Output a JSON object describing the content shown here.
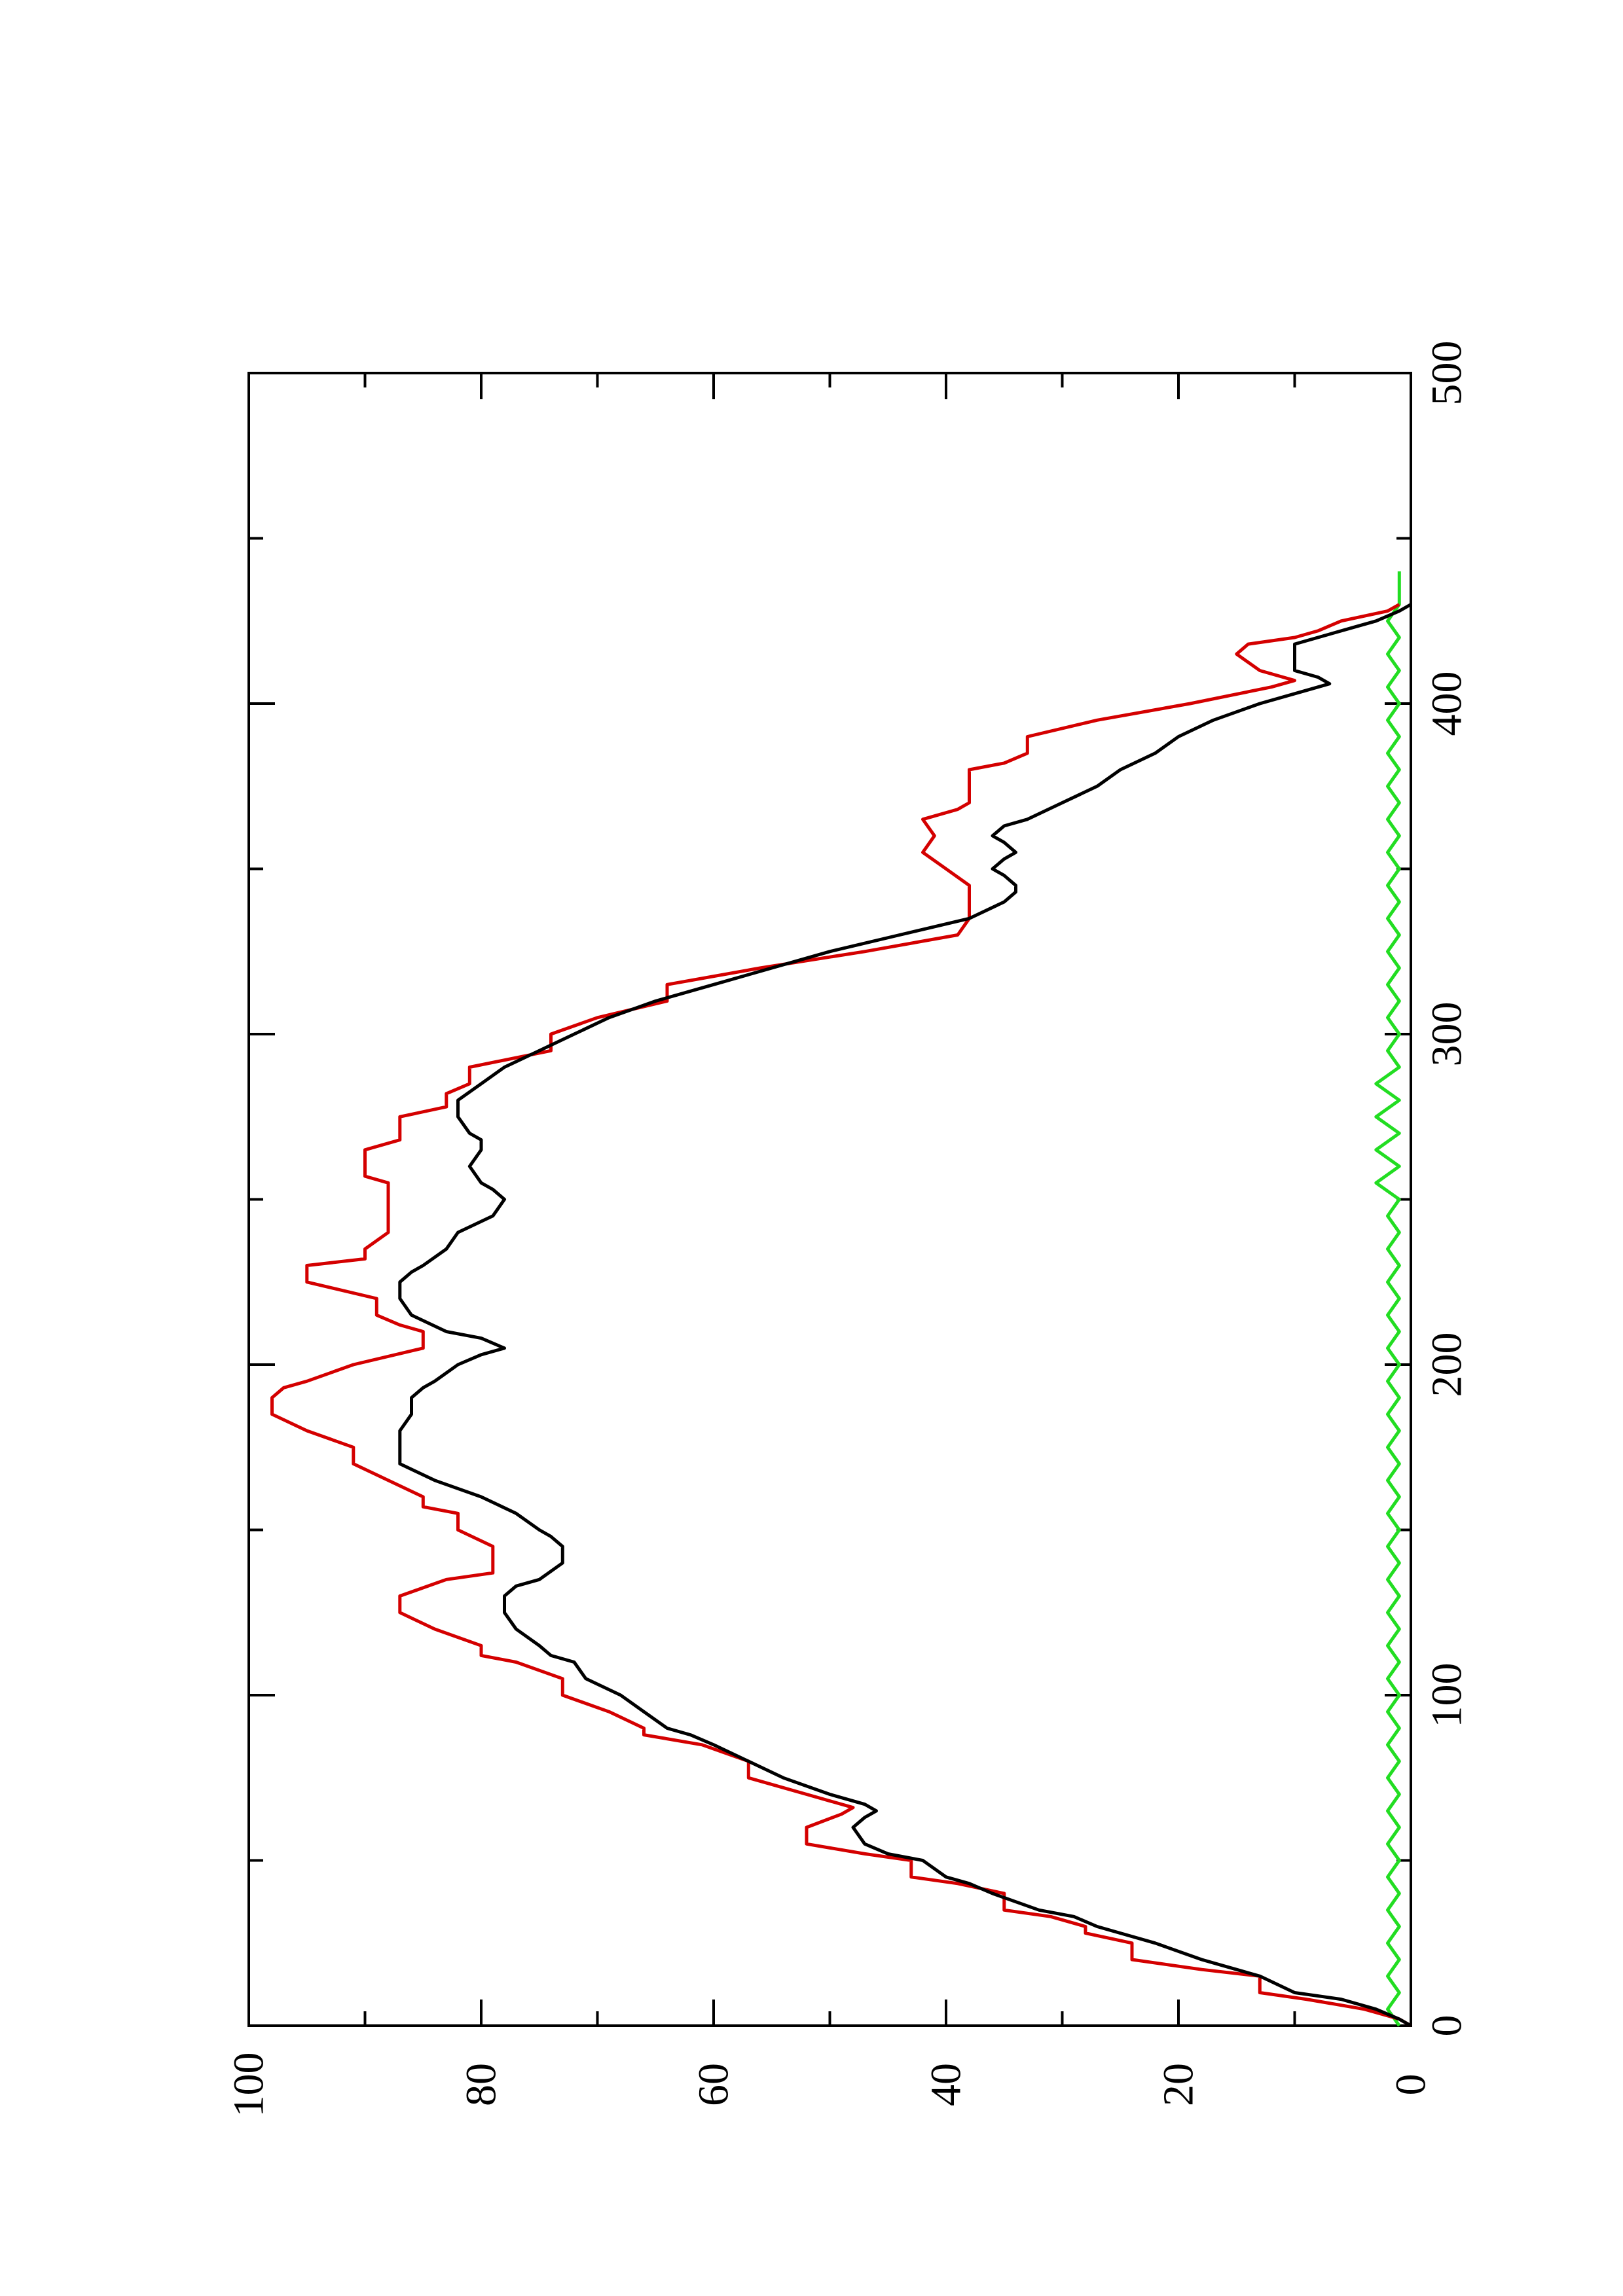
{
  "chart_data": {
    "type": "line",
    "orientation": "rotated 90 degrees counter-clockwise (page in landscape)",
    "title": "",
    "xlabel": "",
    "ylabel": "",
    "xlim": [
      0,
      500
    ],
    "ylim": [
      0,
      100
    ],
    "x_ticks": [
      "0",
      "100",
      "200",
      "300",
      "400",
      "500"
    ],
    "y_ticks": [
      "0",
      "20",
      "40",
      "60",
      "80",
      "100"
    ],
    "grid": false,
    "legend": "none",
    "series": [
      {
        "color": "#d40000",
        "style": "step-like line",
        "points": [
          [
            0,
            0
          ],
          [
            2,
            1
          ],
          [
            5,
            4
          ],
          [
            8,
            9
          ],
          [
            10,
            13
          ],
          [
            15,
            13
          ],
          [
            17,
            18
          ],
          [
            20,
            24
          ],
          [
            25,
            24
          ],
          [
            28,
            28
          ],
          [
            30,
            28
          ],
          [
            33,
            31
          ],
          [
            35,
            35
          ],
          [
            40,
            35
          ],
          [
            43,
            39
          ],
          [
            45,
            43
          ],
          [
            50,
            43
          ],
          [
            52,
            47
          ],
          [
            55,
            52
          ],
          [
            60,
            52
          ],
          [
            64,
            49
          ],
          [
            66,
            48
          ],
          [
            70,
            52
          ],
          [
            75,
            57
          ],
          [
            80,
            57
          ],
          [
            85,
            61
          ],
          [
            88,
            66
          ],
          [
            90,
            66
          ],
          [
            95,
            69
          ],
          [
            100,
            73
          ],
          [
            105,
            73
          ],
          [
            110,
            77
          ],
          [
            112,
            80
          ],
          [
            115,
            80
          ],
          [
            120,
            84
          ],
          [
            125,
            87
          ],
          [
            130,
            87
          ],
          [
            135,
            83
          ],
          [
            137,
            79
          ],
          [
            140,
            79
          ],
          [
            143,
            79
          ],
          [
            145,
            79
          ],
          [
            150,
            82
          ],
          [
            155,
            82
          ],
          [
            157,
            85
          ],
          [
            160,
            85
          ],
          [
            165,
            88
          ],
          [
            170,
            91
          ],
          [
            175,
            91
          ],
          [
            180,
            95
          ],
          [
            185,
            98
          ],
          [
            190,
            98
          ],
          [
            193,
            97
          ],
          [
            195,
            95
          ],
          [
            200,
            91
          ],
          [
            205,
            85
          ],
          [
            210,
            85
          ],
          [
            212,
            87
          ],
          [
            215,
            89
          ],
          [
            220,
            89
          ],
          [
            225,
            95
          ],
          [
            230,
            95
          ],
          [
            232,
            90
          ],
          [
            235,
            90
          ],
          [
            240,
            88
          ],
          [
            245,
            88
          ],
          [
            250,
            88
          ],
          [
            255,
            88
          ],
          [
            257,
            90
          ],
          [
            260,
            90
          ],
          [
            265,
            90
          ],
          [
            268,
            87
          ],
          [
            270,
            87
          ],
          [
            275,
            87
          ],
          [
            278,
            83
          ],
          [
            280,
            83
          ],
          [
            282,
            83
          ],
          [
            285,
            81
          ],
          [
            290,
            81
          ],
          [
            295,
            74
          ],
          [
            300,
            74
          ],
          [
            305,
            70
          ],
          [
            310,
            64
          ],
          [
            315,
            64
          ],
          [
            320,
            56
          ],
          [
            325,
            47
          ],
          [
            330,
            39
          ],
          [
            335,
            38
          ],
          [
            340,
            38
          ],
          [
            345,
            38
          ],
          [
            350,
            40
          ],
          [
            355,
            42
          ],
          [
            360,
            41
          ],
          [
            365,
            42
          ],
          [
            368,
            39
          ],
          [
            370,
            38
          ],
          [
            375,
            38
          ],
          [
            380,
            38
          ],
          [
            382,
            35
          ],
          [
            385,
            33
          ],
          [
            390,
            33
          ],
          [
            395,
            27
          ],
          [
            400,
            19
          ],
          [
            405,
            12
          ],
          [
            407,
            10
          ],
          [
            408,
            11
          ],
          [
            410,
            13
          ],
          [
            415,
            15
          ],
          [
            418,
            14
          ],
          [
            420,
            10
          ],
          [
            422,
            8
          ],
          [
            425,
            6
          ],
          [
            428,
            2
          ],
          [
            430,
            1
          ]
        ]
      },
      {
        "color": "#000000",
        "style": "step-like line",
        "points": [
          [
            0,
            0
          ],
          [
            2,
            1
          ],
          [
            5,
            3
          ],
          [
            8,
            6
          ],
          [
            10,
            10
          ],
          [
            15,
            13
          ],
          [
            17,
            15
          ],
          [
            20,
            18
          ],
          [
            25,
            22
          ],
          [
            28,
            25
          ],
          [
            30,
            27
          ],
          [
            33,
            29
          ],
          [
            35,
            32
          ],
          [
            40,
            36
          ],
          [
            43,
            38
          ],
          [
            45,
            40
          ],
          [
            50,
            42
          ],
          [
            52,
            45
          ],
          [
            55,
            47
          ],
          [
            60,
            48
          ],
          [
            63,
            47
          ],
          [
            65,
            46
          ],
          [
            67,
            47
          ],
          [
            70,
            50
          ],
          [
            75,
            54
          ],
          [
            80,
            57
          ],
          [
            85,
            60
          ],
          [
            88,
            62
          ],
          [
            90,
            64
          ],
          [
            95,
            66
          ],
          [
            100,
            68
          ],
          [
            105,
            71
          ],
          [
            110,
            72
          ],
          [
            112,
            74
          ],
          [
            115,
            75
          ],
          [
            120,
            77
          ],
          [
            125,
            78
          ],
          [
            130,
            78
          ],
          [
            133,
            77
          ],
          [
            135,
            75
          ],
          [
            140,
            73
          ],
          [
            145,
            73
          ],
          [
            148,
            74
          ],
          [
            150,
            75
          ],
          [
            155,
            77
          ],
          [
            160,
            80
          ],
          [
            165,
            84
          ],
          [
            170,
            87
          ],
          [
            175,
            87
          ],
          [
            180,
            87
          ],
          [
            185,
            86
          ],
          [
            190,
            86
          ],
          [
            193,
            85
          ],
          [
            195,
            84
          ],
          [
            200,
            82
          ],
          [
            203,
            80
          ],
          [
            205,
            78
          ],
          [
            208,
            80
          ],
          [
            210,
            83
          ],
          [
            215,
            86
          ],
          [
            220,
            87
          ],
          [
            225,
            87
          ],
          [
            228,
            86
          ],
          [
            230,
            85
          ],
          [
            235,
            83
          ],
          [
            240,
            82
          ],
          [
            245,
            79
          ],
          [
            250,
            78
          ],
          [
            253,
            79
          ],
          [
            255,
            80
          ],
          [
            260,
            81
          ],
          [
            265,
            80
          ],
          [
            268,
            80
          ],
          [
            270,
            81
          ],
          [
            275,
            82
          ],
          [
            280,
            82
          ],
          [
            285,
            80
          ],
          [
            290,
            78
          ],
          [
            295,
            75
          ],
          [
            300,
            72
          ],
          [
            305,
            69
          ],
          [
            310,
            65
          ],
          [
            315,
            60
          ],
          [
            320,
            55
          ],
          [
            325,
            50
          ],
          [
            330,
            44
          ],
          [
            335,
            38
          ],
          [
            340,
            35
          ],
          [
            343,
            34
          ],
          [
            345,
            34
          ],
          [
            348,
            35
          ],
          [
            350,
            36
          ],
          [
            353,
            35
          ],
          [
            355,
            34
          ],
          [
            358,
            35
          ],
          [
            360,
            36
          ],
          [
            363,
            35
          ],
          [
            365,
            33
          ],
          [
            370,
            30
          ],
          [
            375,
            27
          ],
          [
            380,
            25
          ],
          [
            385,
            22
          ],
          [
            390,
            20
          ],
          [
            395,
            17
          ],
          [
            400,
            13
          ],
          [
            404,
            9
          ],
          [
            406,
            7
          ],
          [
            408,
            8
          ],
          [
            410,
            10
          ],
          [
            415,
            10
          ],
          [
            418,
            10
          ],
          [
            420,
            8
          ],
          [
            423,
            5
          ],
          [
            425,
            3
          ],
          [
            428,
            1
          ],
          [
            430,
            0
          ]
        ]
      },
      {
        "color": "#22dd22",
        "style": "noisy line near zero",
        "points": [
          [
            0,
            1
          ],
          [
            5,
            2
          ],
          [
            10,
            1
          ],
          [
            15,
            2
          ],
          [
            20,
            1
          ],
          [
            25,
            2
          ],
          [
            30,
            1
          ],
          [
            35,
            2
          ],
          [
            40,
            1
          ],
          [
            45,
            2
          ],
          [
            50,
            1
          ],
          [
            55,
            2
          ],
          [
            60,
            1
          ],
          [
            65,
            2
          ],
          [
            70,
            1
          ],
          [
            75,
            2
          ],
          [
            80,
            1
          ],
          [
            85,
            2
          ],
          [
            90,
            1
          ],
          [
            95,
            2
          ],
          [
            100,
            1
          ],
          [
            105,
            2
          ],
          [
            110,
            1
          ],
          [
            115,
            2
          ],
          [
            120,
            1
          ],
          [
            125,
            2
          ],
          [
            130,
            1
          ],
          [
            135,
            2
          ],
          [
            140,
            1
          ],
          [
            145,
            2
          ],
          [
            150,
            1
          ],
          [
            155,
            2
          ],
          [
            160,
            1
          ],
          [
            165,
            2
          ],
          [
            170,
            1
          ],
          [
            175,
            2
          ],
          [
            180,
            1
          ],
          [
            185,
            2
          ],
          [
            190,
            1
          ],
          [
            195,
            2
          ],
          [
            200,
            1
          ],
          [
            205,
            2
          ],
          [
            210,
            1
          ],
          [
            215,
            2
          ],
          [
            220,
            1
          ],
          [
            225,
            2
          ],
          [
            230,
            1
          ],
          [
            235,
            2
          ],
          [
            240,
            1
          ],
          [
            245,
            2
          ],
          [
            250,
            1
          ],
          [
            255,
            3
          ],
          [
            260,
            1
          ],
          [
            265,
            3
          ],
          [
            270,
            1
          ],
          [
            275,
            3
          ],
          [
            280,
            1
          ],
          [
            285,
            3
          ],
          [
            290,
            1
          ],
          [
            295,
            2
          ],
          [
            300,
            1
          ],
          [
            305,
            2
          ],
          [
            310,
            1
          ],
          [
            315,
            2
          ],
          [
            320,
            1
          ],
          [
            325,
            2
          ],
          [
            330,
            1
          ],
          [
            335,
            2
          ],
          [
            340,
            1
          ],
          [
            345,
            2
          ],
          [
            350,
            1
          ],
          [
            355,
            2
          ],
          [
            360,
            1
          ],
          [
            365,
            2
          ],
          [
            370,
            1
          ],
          [
            375,
            2
          ],
          [
            380,
            1
          ],
          [
            385,
            2
          ],
          [
            390,
            1
          ],
          [
            395,
            2
          ],
          [
            400,
            1
          ],
          [
            405,
            2
          ],
          [
            410,
            1
          ],
          [
            415,
            2
          ],
          [
            420,
            1
          ],
          [
            425,
            2
          ],
          [
            430,
            1
          ],
          [
            435,
            1
          ],
          [
            440,
            1
          ]
        ]
      }
    ]
  }
}
